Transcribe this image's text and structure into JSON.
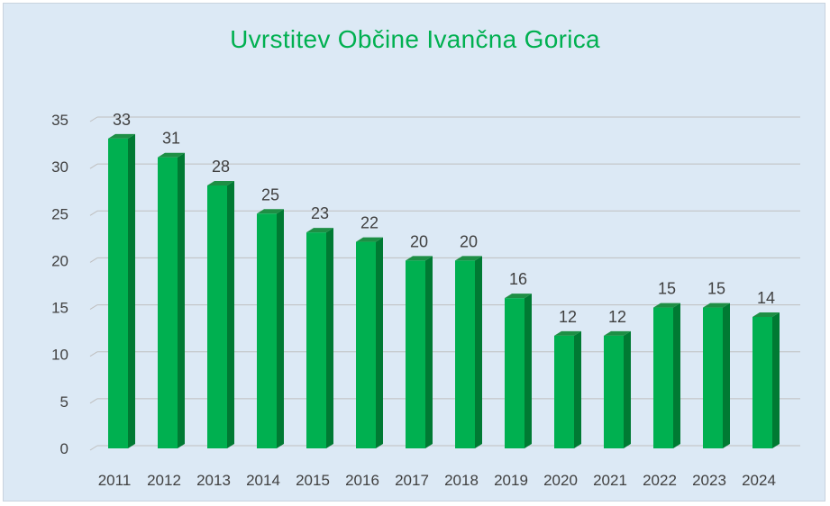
{
  "chart_data": {
    "type": "bar",
    "title": "Uvrstitev Občine Ivančna Gorica",
    "categories": [
      "2011",
      "2012",
      "2013",
      "2014",
      "2015",
      "2016",
      "2017",
      "2018",
      "2019",
      "2020",
      "2021",
      "2022",
      "2023",
      "2024"
    ],
    "values": [
      33,
      31,
      28,
      25,
      23,
      22,
      20,
      20,
      16,
      12,
      12,
      15,
      15,
      14
    ],
    "xlabel": "",
    "ylabel": "",
    "ylim": [
      0,
      35
    ],
    "yticks": [
      0,
      5,
      10,
      15,
      20,
      25,
      30,
      35
    ],
    "grid": true,
    "legend": "none",
    "bar_style": "3d-column",
    "data_labels": true
  },
  "colors": {
    "title": "#00b050",
    "background": "#dce9f5",
    "bar_front": "#00b050",
    "bar_side": "#007a33",
    "bar_top": "#1e8f45",
    "grid": "#bfbfbf",
    "text": "#404040"
  }
}
